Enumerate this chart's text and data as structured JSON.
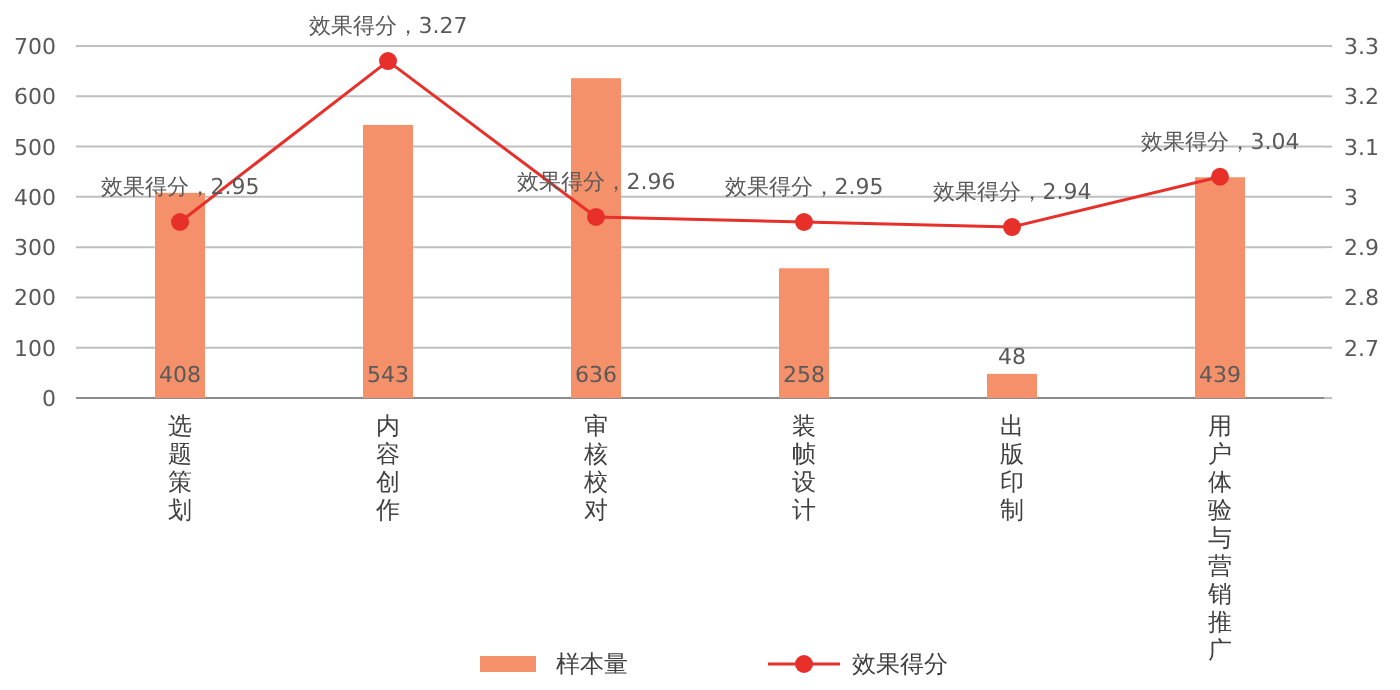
{
  "chart_data": {
    "type": "bar",
    "categories": [
      "选题策划",
      "内容创作",
      "审核校对",
      "装帧设计",
      "出版印制",
      "用户体验与营销推广"
    ],
    "series": [
      {
        "name": "样本量",
        "color": "#f4916b",
        "values": [
          408,
          543,
          636,
          258,
          48,
          439
        ],
        "value_labels": [
          "408",
          "543",
          "636",
          "258",
          "48",
          "439"
        ]
      },
      {
        "name": "效果得分",
        "type": "line",
        "axis": "y2",
        "color": "#e8302a",
        "marker": "circle",
        "values": [
          2.95,
          3.27,
          2.96,
          2.95,
          2.94,
          3.04
        ],
        "value_labels": [
          "效果得分，2.95",
          "效果得分，3.27",
          "效果得分，2.96",
          "效果得分，2.95",
          "效果得分，2.94",
          "效果得分，3.04"
        ]
      }
    ],
    "ylim": [
      0,
      700
    ],
    "yticks": [
      0,
      100,
      200,
      300,
      400,
      500,
      600,
      700
    ],
    "y2lim": [
      2.6,
      3.3
    ],
    "y2ticks": [
      {
        "value": 2.6,
        "label": null
      },
      2.7,
      2.8,
      2.9,
      3,
      3.1,
      3.2,
      3.3
    ],
    "grid": "y",
    "legend": "bottom"
  }
}
